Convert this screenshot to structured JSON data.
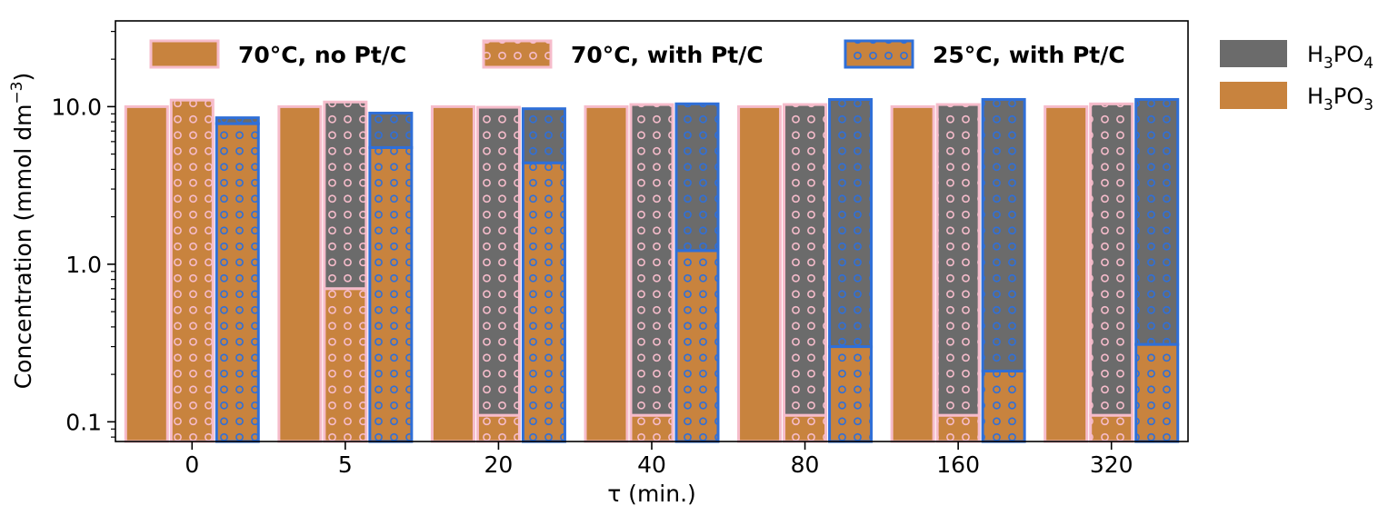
{
  "chart_data": {
    "type": "bar",
    "subtype": "grouped-stacked",
    "y_scale": "log",
    "ylim": [
      0.075,
      35
    ],
    "ylabel_main": "Concentration (mmol dm",
    "ylabel_sup": "−3",
    "ylabel_close": ")",
    "xlabel": "τ (min.)",
    "yticks": [
      {
        "value": 0.1,
        "label": "0.1"
      },
      {
        "value": 1.0,
        "label": "1.0"
      },
      {
        "value": 10.0,
        "label": "10.0"
      }
    ],
    "categories": [
      "0",
      "5",
      "20",
      "40",
      "80",
      "160",
      "320"
    ],
    "conditions": [
      {
        "name": "70°C, no Pt/C",
        "edge": "#f6bccb",
        "hatch": "none"
      },
      {
        "name": "70°C, with Pt/C",
        "edge": "#f6bccb",
        "hatch": "circles"
      },
      {
        "name": "25°C, with Pt/C",
        "edge": "#2f6fd8",
        "hatch": "circles"
      }
    ],
    "species": [
      {
        "name": "H3PO4",
        "label_base": "H",
        "sub1": "3",
        "mid": "PO",
        "sub2": "4",
        "color": "#6b6b6b"
      },
      {
        "name": "H3PO3",
        "label_base": "H",
        "sub1": "3",
        "mid": "PO",
        "sub2": "3",
        "color": "#c8833e"
      }
    ],
    "series": [
      {
        "condition": "70°C, no Pt/C",
        "H3PO3": [
          10.0,
          10.0,
          10.0,
          10.0,
          10.0,
          10.0,
          10.0
        ],
        "H3PO4": [
          0,
          0,
          0,
          0,
          0,
          0,
          0
        ]
      },
      {
        "condition": "70°C, with Pt/C",
        "H3PO3": [
          11.0,
          0.7,
          0.11,
          0.11,
          0.11,
          0.11,
          0.11
        ],
        "H3PO4": [
          0,
          10.0,
          9.8,
          10.2,
          10.2,
          10.2,
          10.3
        ]
      },
      {
        "condition": "25°C, with Pt/C",
        "H3PO3": [
          7.8,
          5.5,
          4.4,
          1.22,
          0.3,
          0.21,
          0.31
        ],
        "H3PO4": [
          0.7,
          3.6,
          5.3,
          9.2,
          10.8,
          10.9,
          10.8
        ]
      }
    ],
    "legend_position": "top inside plot (conditions); outside right (species)"
  }
}
